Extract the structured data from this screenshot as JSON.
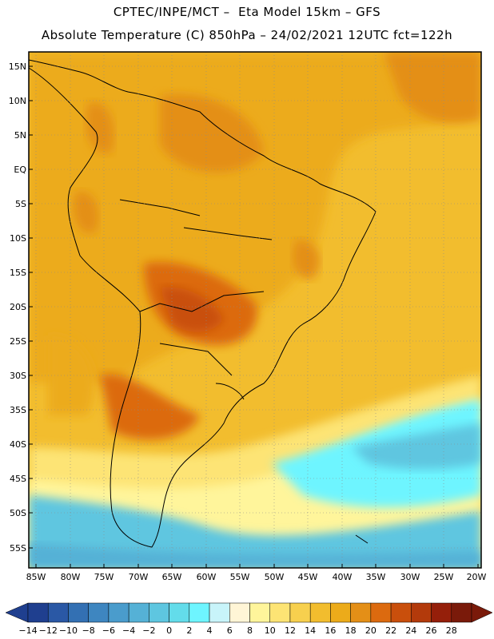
{
  "header": {
    "line1": "CPTEC/INPE/MCT –  Eta Model 15km – GFS",
    "line2": "Absolute Temperature (C) 850hPa – 24/02/2021 12UTC fct=122h"
  },
  "axes": {
    "lat_labels": [
      "15N",
      "10N",
      "5N",
      "EQ",
      "5S",
      "10S",
      "15S",
      "20S",
      "25S",
      "30S",
      "35S",
      "40S",
      "45S",
      "50S",
      "55S"
    ],
    "lon_labels": [
      "85W",
      "80W",
      "75W",
      "70W",
      "65W",
      "60W",
      "55W",
      "50W",
      "45W",
      "40W",
      "35W",
      "30W",
      "25W",
      "20W"
    ]
  },
  "colorbar": {
    "labels": [
      "-14",
      "-12",
      "-10",
      "-8",
      "-6",
      "-4",
      "-2",
      "0",
      "2",
      "4",
      "6",
      "8",
      "10",
      "12",
      "14",
      "16",
      "18",
      "20",
      "22",
      "24",
      "26",
      "28"
    ],
    "colors": [
      "#1f3f8f",
      "#2a58a5",
      "#3370b3",
      "#3e86c0",
      "#4a9ccc",
      "#55b1d6",
      "#5ec6e0",
      "#63dcea",
      "#6ef5ff",
      "#c8f4fa",
      "#fff5d6",
      "#fff59b",
      "#fde474",
      "#f7d04e",
      "#f2bd2e",
      "#ecab1a",
      "#e48f17",
      "#dc6a0f",
      "#c94f0c",
      "#b33a0b",
      "#951f0a",
      "#7a1a0a"
    ]
  }
}
